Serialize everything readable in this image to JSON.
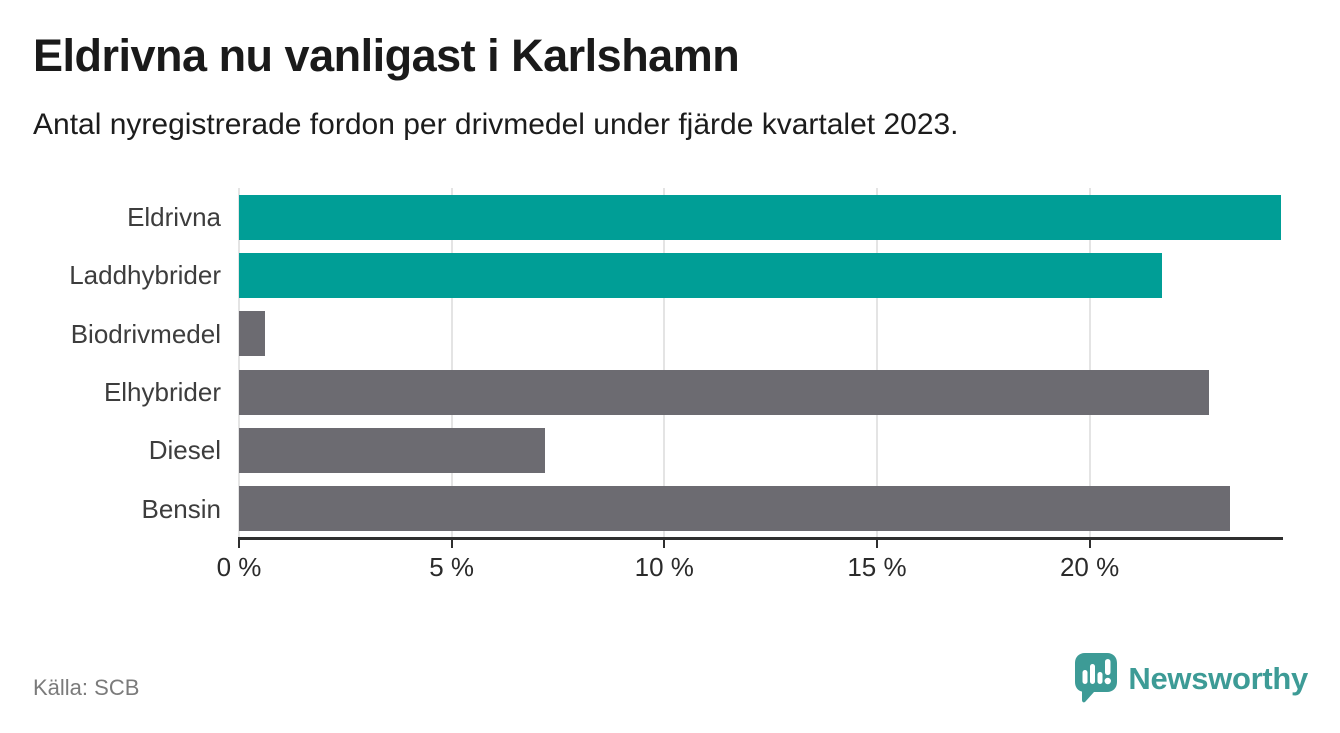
{
  "header": {
    "title": "Eldrivna nu vanligast i Karlshamn",
    "subtitle": "Antal nyregistrerade fordon per drivmedel under fjärde kvartalet 2023."
  },
  "chart_data": {
    "type": "bar",
    "orientation": "horizontal",
    "title": "Eldrivna nu vanligast i Karlshamn",
    "subtitle": "Antal nyregistrerade fordon per drivmedel under fjärde kvartalet 2023.",
    "categories": [
      "Eldrivna",
      "Laddhybrider",
      "Biodrivmedel",
      "Elhybrider",
      "Diesel",
      "Bensin"
    ],
    "values": [
      24.5,
      21.7,
      0.6,
      22.8,
      7.2,
      23.3
    ],
    "unit": "%",
    "xlabel": "",
    "ylabel": "",
    "xlim": [
      0,
      24.5
    ],
    "xticks": [
      0,
      5,
      10,
      15,
      20
    ],
    "xtick_labels": [
      "0 %",
      "5 %",
      "10 %",
      "15 %",
      "20 %"
    ],
    "grid": true,
    "legend": false,
    "bar_colors": [
      "#009e96",
      "#009e96",
      "#6c6b71",
      "#6c6b71",
      "#6c6b71",
      "#6c6b71"
    ],
    "highlight_color": "#009e96",
    "default_color": "#6c6b71"
  },
  "footer": {
    "source": "Källa: SCB",
    "brand": "Newsworthy"
  },
  "colors": {
    "accent_teal": "#009e96",
    "bar_gray": "#6c6b71",
    "brand_teal": "#3d9b96",
    "grid_line": "#e4e4e4",
    "axis_line": "#2f2f2f",
    "title_text": "#1a1a1a",
    "label_text": "#3d3d3d",
    "source_text": "#7b7b7b"
  }
}
